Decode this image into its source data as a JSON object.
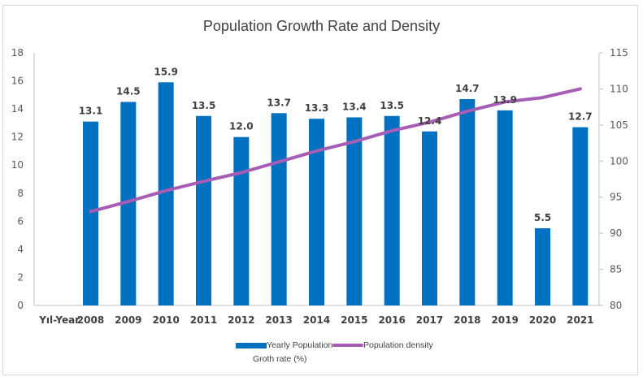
{
  "chart_data": {
    "type": "bar+line",
    "title": "Population Growth Rate and Density",
    "xlabel": "Yıl-Year",
    "categories": [
      "2008",
      "2009",
      "2010",
      "2011",
      "2012",
      "2013",
      "2014",
      "2015",
      "2016",
      "2017",
      "2018",
      "2019",
      "2020",
      "2021"
    ],
    "series": [
      {
        "name": "Yearly Population Groth rate (%)",
        "type": "bar",
        "axis": "left",
        "color": "#0070c0",
        "values": [
          13.1,
          14.5,
          15.9,
          13.5,
          12.0,
          13.7,
          13.3,
          13.4,
          13.5,
          12.4,
          14.7,
          13.9,
          5.5,
          12.7
        ],
        "labels": [
          "13.1",
          "14.5",
          "15.9",
          "13.5",
          "12.0",
          "13.7",
          "13.3",
          "13.4",
          "13.5",
          "12.4",
          "14.7",
          "13.9",
          "5.5",
          "12.7"
        ]
      },
      {
        "name": "Population density",
        "type": "line",
        "axis": "right",
        "color": "#a75db5",
        "values": [
          93.0,
          94.4,
          95.9,
          97.2,
          98.4,
          99.9,
          101.4,
          102.7,
          104.2,
          105.4,
          106.9,
          108.2,
          108.8,
          110.0
        ]
      }
    ],
    "left_axis": {
      "ylim": [
        0,
        18
      ],
      "ticks": [
        0,
        2,
        4,
        6,
        8,
        10,
        12,
        14,
        16,
        18
      ]
    },
    "right_axis": {
      "ylim": [
        80,
        115
      ],
      "ticks": [
        80,
        85,
        90,
        95,
        100,
        105,
        110,
        115
      ]
    },
    "grid": false,
    "legend": {
      "placement": "bottom",
      "items": [
        {
          "label_line1": "Yearly Population",
          "label_line2": "Groth rate (%)",
          "swatch": "bar"
        },
        {
          "label_line1": "Population density",
          "swatch": "line"
        }
      ]
    }
  }
}
